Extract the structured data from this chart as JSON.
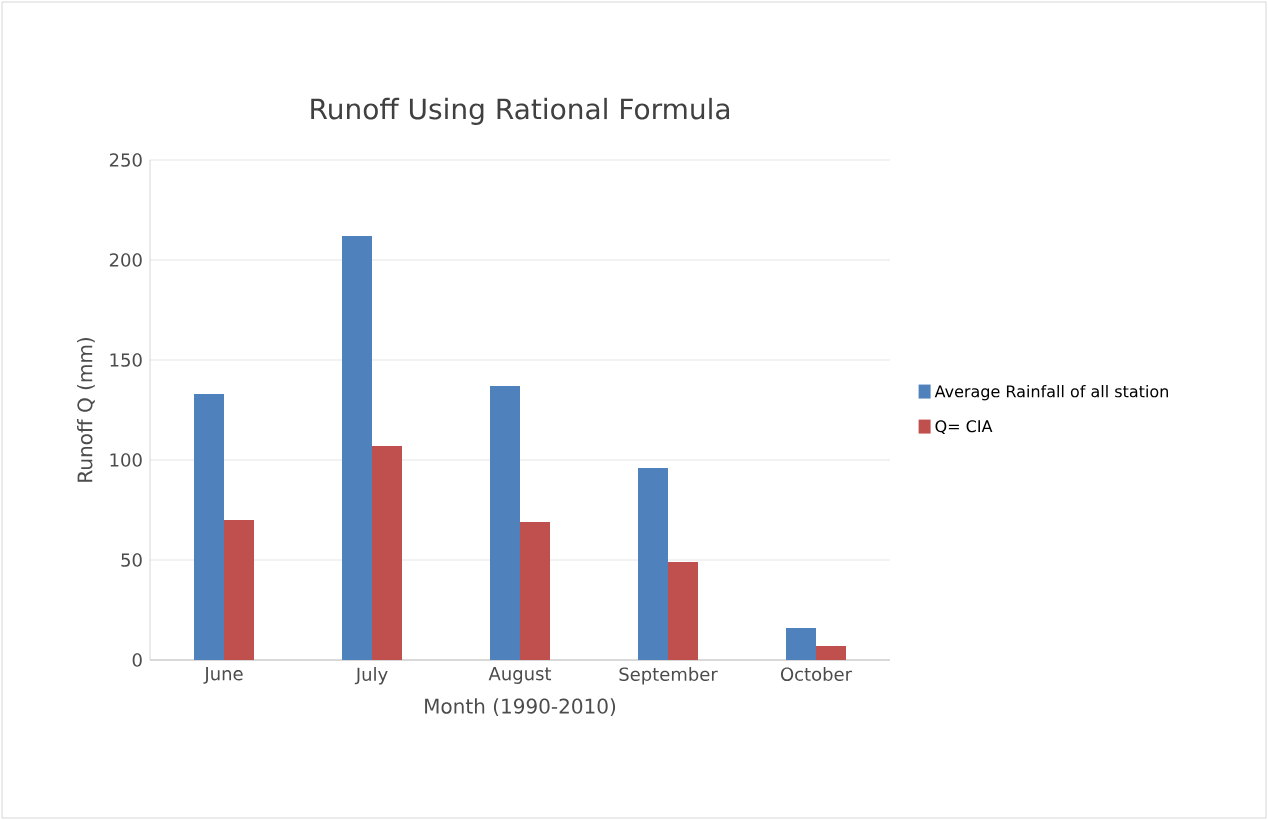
{
  "chart_data": {
    "type": "bar",
    "title": "Runoff Using Rational Formula",
    "xlabel": "Month (1990-2010)",
    "ylabel": "Runoff Q (mm)",
    "categories": [
      "June",
      "July",
      "August",
      "September",
      "October"
    ],
    "series": [
      {
        "name": "Average Rainfall of all station",
        "color": "#4f81bd",
        "values": [
          133,
          212,
          137,
          96,
          16
        ]
      },
      {
        "name": "Q= CIA",
        "color": "#c0504d",
        "values": [
          70,
          107,
          69,
          49,
          7
        ]
      }
    ],
    "ylim": [
      0,
      250
    ],
    "yticks": [
      0,
      50,
      100,
      150,
      200,
      250
    ],
    "grid": "y",
    "legend": "right"
  }
}
